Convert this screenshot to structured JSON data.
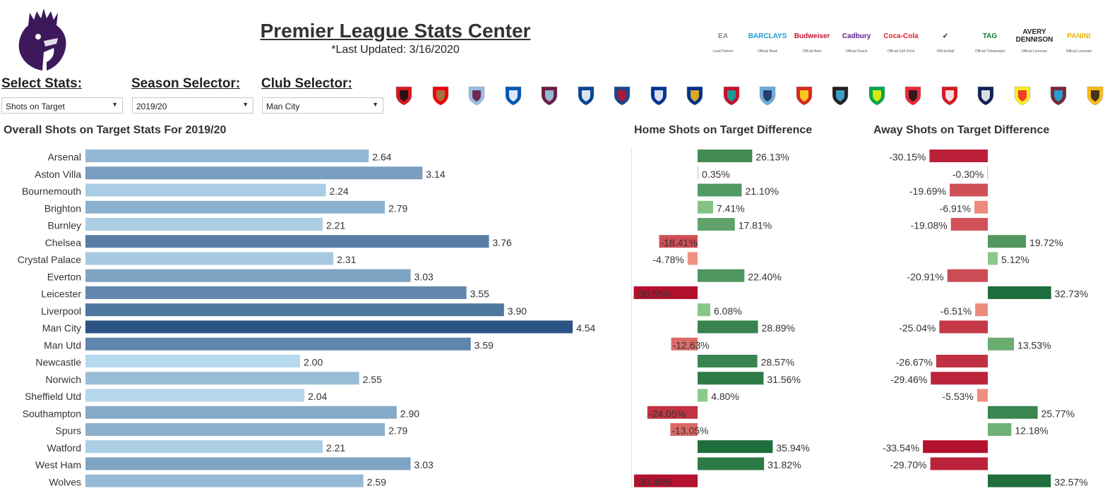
{
  "header": {
    "title": "Premier League Stats Center",
    "subtitle": "*Last Updated: 3/16/2020"
  },
  "sponsors": [
    {
      "name": "EA SPORTS",
      "mark": "EA",
      "caption": "Lead Partner",
      "color": "#888888"
    },
    {
      "name": "BARCLAYS",
      "mark": "BARCLAYS",
      "caption": "Official Bank",
      "color": "#1f9ad7"
    },
    {
      "name": "Budweiser",
      "mark": "Budweiser",
      "caption": "Official Beer",
      "color": "#c8102e"
    },
    {
      "name": "Cadbury",
      "mark": "Cadbury",
      "caption": "Official Snack",
      "color": "#5b1f8f"
    },
    {
      "name": "Coca-Cola",
      "mark": "Coca-Cola",
      "caption": "Official Soft Drink",
      "color": "#e41e2b"
    },
    {
      "name": "Nike",
      "mark": "✓",
      "caption": "Official Ball",
      "color": "#111111"
    },
    {
      "name": "TAG Heuer",
      "mark": "TAG",
      "caption": "Official Timekeeper",
      "color": "#0a7a3a"
    },
    {
      "name": "Avery Dennison",
      "mark": "AVERY DENNISON",
      "caption": "Official Licensee",
      "color": "#222222"
    },
    {
      "name": "Panini",
      "mark": "PANINI",
      "caption": "Official Licensee",
      "color": "#e8b400"
    }
  ],
  "controls": {
    "stats": {
      "label": "Select Stats:",
      "value": "Shots on Target"
    },
    "season": {
      "label": "Season Selector:",
      "value": "2019/20"
    },
    "club": {
      "label": "Club Selector:",
      "value": "Man City"
    }
  },
  "crests": [
    {
      "club": "Bournemouth",
      "c1": "#d71920",
      "c2": "#111111"
    },
    {
      "club": "Arsenal",
      "c1": "#ef0107",
      "c2": "#9c824a"
    },
    {
      "club": "Aston Villa",
      "c1": "#95bfe5",
      "c2": "#670e36"
    },
    {
      "club": "Brighton",
      "c1": "#0057b8",
      "c2": "#ffffff"
    },
    {
      "club": "Burnley",
      "c1": "#6c1d45",
      "c2": "#99d6ea"
    },
    {
      "club": "Chelsea",
      "c1": "#034694",
      "c2": "#ffffff"
    },
    {
      "club": "Crystal Palace",
      "c1": "#1b458f",
      "c2": "#c4122e"
    },
    {
      "club": "Everton",
      "c1": "#003399",
      "c2": "#ffffff"
    },
    {
      "club": "Leicester",
      "c1": "#003090",
      "c2": "#fdbe11"
    },
    {
      "club": "Liverpool",
      "c1": "#c8102e",
      "c2": "#00b2a9"
    },
    {
      "club": "Man City",
      "c1": "#6cabdd",
      "c2": "#1c2c5b"
    },
    {
      "club": "Man Utd",
      "c1": "#da291c",
      "c2": "#fbe122"
    },
    {
      "club": "Newcastle",
      "c1": "#241f20",
      "c2": "#41b6e6"
    },
    {
      "club": "Norwich",
      "c1": "#00a650",
      "c2": "#fff200"
    },
    {
      "club": "Sheffield Utd",
      "c1": "#ee2737",
      "c2": "#0d171a"
    },
    {
      "club": "Southampton",
      "c1": "#d71920",
      "c2": "#ffffff"
    },
    {
      "club": "Spurs",
      "c1": "#132257",
      "c2": "#ffffff"
    },
    {
      "club": "Watford",
      "c1": "#fbee23",
      "c2": "#ed2127"
    },
    {
      "club": "West Ham",
      "c1": "#7a263a",
      "c2": "#1bb1e7"
    },
    {
      "club": "Wolves",
      "c1": "#fdb913",
      "c2": "#231f20"
    }
  ],
  "chart_data": [
    {
      "type": "bar",
      "title": "Overall Shots on Target Stats For 2019/20",
      "orientation": "horizontal",
      "categories": [
        "Arsenal",
        "Aston Villa",
        "Bournemouth",
        "Brighton",
        "Burnley",
        "Chelsea",
        "Crystal Palace",
        "Everton",
        "Leicester",
        "Liverpool",
        "Man City",
        "Man Utd",
        "Newcastle",
        "Norwich",
        "Sheffield Utd",
        "Southampton",
        "Spurs",
        "Watford",
        "West Ham",
        "Wolves"
      ],
      "values": [
        2.64,
        3.14,
        2.24,
        2.79,
        2.21,
        3.76,
        2.31,
        3.03,
        3.55,
        3.9,
        4.54,
        3.59,
        2.0,
        2.55,
        2.04,
        2.9,
        2.79,
        2.21,
        3.03,
        2.59
      ],
      "labels": [
        "2.64",
        "3.14",
        "2.24",
        "2.79",
        "2.21",
        "3.76",
        "2.31",
        "3.03",
        "3.55",
        "3.90",
        "4.54",
        "3.59",
        "2.00",
        "2.55",
        "2.04",
        "2.90",
        "2.79",
        "2.21",
        "3.03",
        "2.59"
      ],
      "xlim": [
        0,
        5.0
      ],
      "color_scale": [
        "#b7d9ee",
        "#2b5485"
      ]
    },
    {
      "type": "bar",
      "title": "Home Shots on Target Difference",
      "orientation": "horizontal",
      "values": [
        26.13,
        0.35,
        21.1,
        7.41,
        17.81,
        -18.41,
        -4.78,
        22.4,
        -30.55,
        6.08,
        28.89,
        -12.63,
        28.57,
        31.56,
        4.8,
        -24.05,
        -13.05,
        35.94,
        31.82,
        -30.4
      ],
      "labels": [
        "26.13%",
        "0.35%",
        "21.10%",
        "7.41%",
        "17.81%",
        "-18.41%",
        "-4.78%",
        "22.40%",
        "-30.55%",
        "6.08%",
        "28.89%",
        "-12.63%",
        "28.57%",
        "31.56%",
        "4.80%",
        "-24.05%",
        "-13.05%",
        "35.94%",
        "31.82%",
        "-30.40%"
      ],
      "xlim": [
        -35,
        42
      ],
      "positive_scale": [
        "#9ed896",
        "#1f6e3d"
      ],
      "negative_scale": [
        "#f9a991",
        "#b3122f"
      ]
    },
    {
      "type": "bar",
      "title": "Away Shots on Target Difference",
      "orientation": "horizontal",
      "values": [
        -30.15,
        -0.3,
        -19.69,
        -6.91,
        -19.08,
        19.72,
        5.12,
        -20.91,
        32.73,
        -6.51,
        -25.04,
        13.53,
        -26.67,
        -29.46,
        -5.53,
        25.77,
        12.18,
        -33.54,
        -29.7,
        32.57
      ],
      "labels": [
        "-30.15%",
        "-0.30%",
        "-19.69%",
        "-6.91%",
        "-19.08%",
        "19.72%",
        "5.12%",
        "-20.91%",
        "32.73%",
        "-6.51%",
        "-25.04%",
        "13.53%",
        "-26.67%",
        "-29.46%",
        "-5.53%",
        "25.77%",
        "12.18%",
        "-33.54%",
        "-29.70%",
        "32.57%"
      ],
      "xlim": [
        -38,
        38
      ],
      "positive_scale": [
        "#9ed896",
        "#1f6e3d"
      ],
      "negative_scale": [
        "#f9a991",
        "#b3122f"
      ]
    }
  ]
}
